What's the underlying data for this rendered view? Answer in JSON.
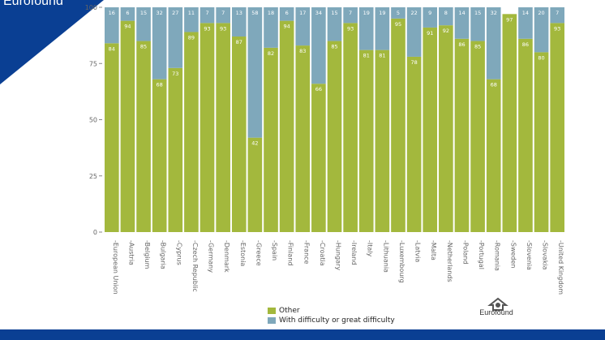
{
  "brand": "Eurofound",
  "logo_text": "Eurofound",
  "colors": {
    "other": "#a3b83d",
    "difficulty": "#7fa8bb",
    "corner": "#0a3f93",
    "bar_bottom": "#0a3f93"
  },
  "chart_data": {
    "type": "bar",
    "stacked": true,
    "ylim": [
      0,
      100
    ],
    "yticks": [
      0,
      25,
      50,
      75,
      100
    ],
    "categories": [
      "European Union",
      "Austria",
      "Belgium",
      "Bulgaria",
      "Cyprus",
      "Czech Republic",
      "Germany",
      "Denmark",
      "Estonia",
      "Greece",
      "Spain",
      "Finland",
      "France",
      "Croatia",
      "Hungary",
      "Ireland",
      "Italy",
      "Lithuania",
      "Luxembourg",
      "Latvia",
      "Malta",
      "Netherlands",
      "Poland",
      "Portugal",
      "Romania",
      "Sweden",
      "Slovenia",
      "Slovakia",
      "United Kingdom"
    ],
    "series": [
      {
        "name": "Other",
        "values": [
          84,
          94,
          85,
          68,
          73,
          89,
          93,
          93,
          87,
          42,
          82,
          94,
          83,
          66,
          85,
          93,
          81,
          81,
          95,
          78,
          91,
          92,
          86,
          85,
          68,
          97,
          86,
          80,
          93
        ]
      },
      {
        "name": "With difficulty or great difficulty",
        "values": [
          16,
          6,
          15,
          32,
          27,
          11,
          7,
          7,
          13,
          58,
          18,
          6,
          17,
          34,
          15,
          7,
          19,
          19,
          5,
          22,
          9,
          8,
          14,
          15,
          32,
          null,
          14,
          20,
          7
        ]
      }
    ],
    "legend_position": "bottom"
  }
}
